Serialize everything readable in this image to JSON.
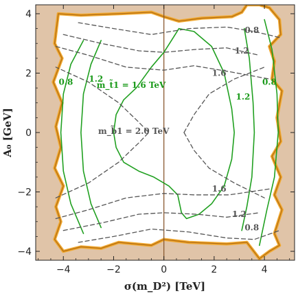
{
  "chart_data": {
    "type": "contour",
    "xlabel": "σ(m_D²) [TeV]",
    "ylabel": "A₀ [GeV]",
    "xlim": [
      -5.1,
      5.2
    ],
    "ylim": [
      -4.3,
      4.3
    ],
    "xticks": [
      -4,
      -2,
      0,
      2,
      4
    ],
    "yticks": [
      -4,
      -2,
      0,
      2,
      4
    ],
    "grid": false,
    "colors": {
      "excluded": "#e0c4a8",
      "boundary": "#f0a830",
      "boundary_dark": "#b06a10",
      "stop_contours": "#20a020",
      "sbottom_contours": "#555555",
      "zero_lines": "#8a5a30"
    },
    "series": [
      {
        "label": "m_t̃1 = 1.6 TeV",
        "style": "solid-green",
        "label_at": [
          -1.3,
          1.6
        ],
        "points": [
          [
            0.3,
            3.1
          ],
          [
            0.6,
            3.5
          ],
          [
            1.2,
            3.4
          ],
          [
            1.9,
            2.9
          ],
          [
            2.4,
            2.0
          ],
          [
            2.7,
            0.8
          ],
          [
            2.8,
            0.0
          ],
          [
            2.7,
            -0.9
          ],
          [
            2.4,
            -1.8
          ],
          [
            1.9,
            -2.4
          ],
          [
            1.4,
            -2.75
          ],
          [
            0.9,
            -2.9
          ],
          [
            0.7,
            -2.7
          ],
          [
            0.55,
            -2.1
          ],
          [
            0.2,
            -1.8
          ],
          [
            -0.4,
            -1.5
          ],
          [
            -1.0,
            -1.3
          ],
          [
            -1.6,
            -1.0
          ],
          [
            -1.9,
            -0.5
          ],
          [
            -2.0,
            0.0
          ],
          [
            -1.9,
            0.6
          ],
          [
            -1.6,
            1.1
          ],
          [
            -1.1,
            1.5
          ],
          [
            -0.5,
            2.2
          ],
          [
            0.0,
            2.7
          ],
          [
            0.3,
            3.1
          ]
        ]
      },
      {
        "label": "1.2",
        "style": "solid-green",
        "label_at": [
          -2.7,
          1.8
        ],
        "points": [
          [
            -2.5,
            3.1
          ],
          [
            -2.9,
            2.3
          ],
          [
            -3.2,
            1.3
          ],
          [
            -3.3,
            0.0
          ],
          [
            -3.2,
            -1.3
          ],
          [
            -2.9,
            -2.4
          ],
          [
            -2.5,
            -3.2
          ]
        ]
      },
      {
        "label": "0.8",
        "style": "solid-green",
        "label_at": [
          -3.9,
          1.7
        ],
        "points": [
          [
            -3.2,
            3.1
          ],
          [
            -3.7,
            2.3
          ],
          [
            -4.0,
            1.3
          ],
          [
            -4.1,
            0.0
          ],
          [
            -4.0,
            -1.3
          ],
          [
            -3.7,
            -2.4
          ],
          [
            -3.2,
            -3.4
          ]
        ]
      },
      {
        "label": "1.2",
        "style": "solid-green",
        "label_at": [
          3.15,
          1.2
        ],
        "points": [
          [
            3.2,
            3.5
          ],
          [
            3.4,
            2.5
          ],
          [
            3.55,
            1.0
          ],
          [
            3.6,
            0.0
          ],
          [
            3.5,
            -1.5
          ],
          [
            3.3,
            -2.5
          ],
          [
            3.1,
            -3.3
          ]
        ]
      },
      {
        "label": "0.8",
        "style": "solid-green",
        "label_at": [
          4.2,
          1.7
        ],
        "points": [
          [
            4.0,
            3.8
          ],
          [
            4.3,
            2.8
          ],
          [
            4.5,
            1.3
          ],
          [
            4.55,
            0.0
          ],
          [
            4.4,
            -1.5
          ],
          [
            4.1,
            -2.6
          ],
          [
            3.8,
            -3.8
          ]
        ]
      },
      {
        "label": "m_b̃1 = 2.0 TeV",
        "style": "dashed-gray",
        "label_at": [
          -1.2,
          0.05
        ],
        "points": [
          [
            -4.3,
            -2.2
          ],
          [
            -3.0,
            -1.7
          ],
          [
            -1.8,
            -1.0
          ],
          [
            -1.0,
            -0.35
          ],
          [
            -0.6,
            0.0
          ],
          [
            -1.0,
            0.35
          ],
          [
            -1.8,
            1.0
          ],
          [
            -3.0,
            1.7
          ],
          [
            -4.3,
            2.2
          ]
        ]
      },
      {
        "label": "",
        "style": "dashed-gray",
        "points": [
          [
            0.8,
            0.0
          ],
          [
            1.2,
            0.6
          ],
          [
            1.8,
            1.3
          ],
          [
            2.8,
            1.8
          ],
          [
            4.0,
            2.2
          ]
        ]
      },
      {
        "label": "",
        "style": "dashed-gray",
        "points": [
          [
            0.8,
            0.0
          ],
          [
            1.2,
            -0.6
          ],
          [
            1.8,
            -1.2
          ],
          [
            2.8,
            -1.7
          ],
          [
            4.0,
            -2.2
          ]
        ]
      },
      {
        "label": "1.6",
        "style": "dashed-gray",
        "label_at": [
          2.2,
          2.0
        ],
        "points": [
          [
            -4.3,
            2.9
          ],
          [
            -3.0,
            2.6
          ],
          [
            -1.5,
            2.2
          ],
          [
            0.0,
            2.1
          ],
          [
            1.2,
            2.25
          ],
          [
            2.6,
            2.05
          ],
          [
            4.2,
            1.8
          ]
        ]
      },
      {
        "label": "1.6",
        "style": "dashed-gray",
        "label_at": [
          2.2,
          -1.9
        ],
        "points": [
          [
            -4.3,
            -2.9
          ],
          [
            -3.0,
            -2.6
          ],
          [
            -1.5,
            -2.2
          ],
          [
            0.0,
            -2.05
          ],
          [
            1.2,
            -2.1
          ],
          [
            2.6,
            -2.1
          ],
          [
            4.2,
            -1.9
          ]
        ]
      },
      {
        "label": "1.2",
        "style": "dashed-gray",
        "label_at": [
          3.1,
          2.75
        ],
        "points": [
          [
            -4.0,
            3.3
          ],
          [
            -2.5,
            3.0
          ],
          [
            -1.0,
            2.75
          ],
          [
            0.0,
            2.7
          ],
          [
            1.3,
            2.8
          ],
          [
            2.5,
            2.85
          ],
          [
            3.8,
            2.6
          ]
        ]
      },
      {
        "label": "1.2",
        "style": "dashed-gray",
        "label_at": [
          3.0,
          -2.75
        ],
        "points": [
          [
            -4.0,
            -3.3
          ],
          [
            -2.5,
            -3.05
          ],
          [
            -1.0,
            -2.75
          ],
          [
            0.0,
            -2.7
          ],
          [
            1.3,
            -2.75
          ],
          [
            2.5,
            -2.85
          ],
          [
            3.8,
            -2.7
          ]
        ]
      },
      {
        "label": "0.8",
        "style": "dashed-gray",
        "label_at": [
          3.5,
          3.45
        ],
        "points": [
          [
            -3.4,
            3.7
          ],
          [
            -2.0,
            3.5
          ],
          [
            -0.5,
            3.3
          ],
          [
            1.0,
            3.5
          ],
          [
            2.5,
            3.55
          ],
          [
            3.6,
            3.4
          ],
          [
            4.6,
            3.2
          ]
        ]
      },
      {
        "label": "0.8",
        "style": "dashed-gray",
        "label_at": [
          3.5,
          -3.2
        ],
        "points": [
          [
            -3.4,
            -3.7
          ],
          [
            -2.0,
            -3.5
          ],
          [
            -0.5,
            -3.25
          ],
          [
            1.0,
            -3.35
          ],
          [
            2.5,
            -3.55
          ],
          [
            3.6,
            -3.6
          ],
          [
            4.6,
            -3.3
          ]
        ]
      }
    ],
    "allowed_region": [
      [
        -4.2,
        4.0
      ],
      [
        -3.3,
        3.95
      ],
      [
        -1.8,
        4.0
      ],
      [
        -0.5,
        4.05
      ],
      [
        0.0,
        3.9
      ],
      [
        0.6,
        3.75
      ],
      [
        1.5,
        3.85
      ],
      [
        2.7,
        3.9
      ],
      [
        3.1,
        4.05
      ],
      [
        3.3,
        4.3
      ],
      [
        3.8,
        4.3
      ],
      [
        4.2,
        4.2
      ],
      [
        4.6,
        3.8
      ],
      [
        4.65,
        3.3
      ],
      [
        4.2,
        2.9
      ],
      [
        4.4,
        2.4
      ],
      [
        4.3,
        1.8
      ],
      [
        4.7,
        1.4
      ],
      [
        4.5,
        0.5
      ],
      [
        4.65,
        -0.3
      ],
      [
        4.3,
        -0.8
      ],
      [
        4.65,
        -1.5
      ],
      [
        4.4,
        -2.1
      ],
      [
        4.7,
        -2.6
      ],
      [
        4.4,
        -3.4
      ],
      [
        4.6,
        -3.8
      ],
      [
        4.2,
        -4.0
      ],
      [
        3.8,
        -4.25
      ],
      [
        3.3,
        -3.7
      ],
      [
        2.5,
        -3.75
      ],
      [
        1.0,
        -3.7
      ],
      [
        0.0,
        -3.6
      ],
      [
        -0.5,
        -3.8
      ],
      [
        -1.8,
        -3.7
      ],
      [
        -2.5,
        -3.9
      ],
      [
        -3.3,
        -3.85
      ],
      [
        -4.0,
        -4.0
      ],
      [
        -4.35,
        -3.6
      ],
      [
        -4.1,
        -3.0
      ],
      [
        -4.3,
        -2.5
      ],
      [
        -4.0,
        -1.8
      ],
      [
        -4.35,
        -1.2
      ],
      [
        -4.1,
        -0.5
      ],
      [
        -4.3,
        0.2
      ],
      [
        -4.05,
        1.0
      ],
      [
        -4.4,
        1.7
      ],
      [
        -4.05,
        2.5
      ],
      [
        -4.35,
        3.0
      ],
      [
        -4.2,
        4.0
      ]
    ]
  }
}
